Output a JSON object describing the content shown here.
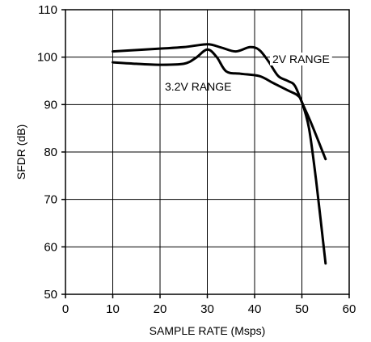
{
  "chart_data": {
    "type": "line",
    "title": "",
    "xlabel": "SAMPLE RATE (Msps)",
    "ylabel": "SFDR (dB)",
    "xlim": [
      0,
      60
    ],
    "ylim": [
      50,
      110
    ],
    "xticks": [
      0,
      10,
      20,
      30,
      40,
      50,
      60
    ],
    "yticks": [
      50,
      60,
      70,
      80,
      90,
      100,
      110
    ],
    "grid": true,
    "legend": "none",
    "series": [
      {
        "name": "2V RANGE",
        "color": "#000000",
        "points": [
          [
            10,
            101.2
          ],
          [
            15,
            101.5
          ],
          [
            20,
            101.8
          ],
          [
            25,
            102.1
          ],
          [
            30,
            102.7
          ],
          [
            33,
            102.0
          ],
          [
            36,
            101.2
          ],
          [
            39,
            102.1
          ],
          [
            41,
            101.5
          ],
          [
            43,
            99.0
          ],
          [
            45,
            96.0
          ],
          [
            47,
            95.0
          ],
          [
            48.5,
            94.0
          ],
          [
            50,
            90.5
          ],
          [
            52,
            86.0
          ],
          [
            55,
            78.5
          ]
        ]
      },
      {
        "name": "3.2V RANGE",
        "color": "#000000",
        "points": [
          [
            10,
            98.9
          ],
          [
            15,
            98.6
          ],
          [
            20,
            98.4
          ],
          [
            25,
            98.6
          ],
          [
            27.5,
            99.8
          ],
          [
            30,
            101.6
          ],
          [
            32,
            100.0
          ],
          [
            34,
            97.0
          ],
          [
            37,
            96.5
          ],
          [
            41,
            96.0
          ],
          [
            44,
            94.5
          ],
          [
            47,
            93.0
          ],
          [
            49,
            92.0
          ],
          [
            50,
            90.5
          ],
          [
            51.5,
            85.0
          ],
          [
            53,
            74.0
          ],
          [
            55,
            56.5
          ]
        ]
      }
    ]
  }
}
